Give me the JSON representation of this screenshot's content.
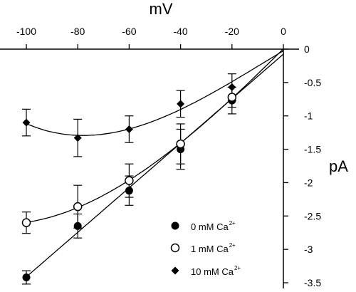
{
  "chart_data": {
    "type": "scatter",
    "xlabel": "mV",
    "ylabel": "pA",
    "xlim": [
      -105,
      0
    ],
    "ylim": [
      -3.55,
      0
    ],
    "x_ticks": [
      -100,
      -80,
      -60,
      -40,
      -20,
      0
    ],
    "y_ticks": [
      0,
      -0.5,
      -1,
      -1.5,
      -2,
      -2.5,
      -3,
      -3.5
    ],
    "x_tick_labels": [
      "-100",
      "-80",
      "-60",
      "-40",
      "-20",
      "0"
    ],
    "y_tick_labels": [
      "0",
      "-0.5",
      "-1",
      "-1.5",
      "-2",
      "-2.5",
      "-3",
      "-3.5"
    ],
    "legend_position": "bottom-right",
    "series": [
      {
        "name": "0 mM Ca",
        "name_sup": "2+",
        "marker": "filled-circle",
        "x": [
          -100,
          -80,
          -60,
          -40,
          -20
        ],
        "y": [
          -3.42,
          -2.65,
          -2.12,
          -1.5,
          -0.77
        ],
        "err": [
          0.1,
          0.18,
          0.22,
          0.3,
          0.2
        ],
        "fit": "linear"
      },
      {
        "name": "1 mM Ca",
        "name_sup": "2+",
        "marker": "open-circle",
        "x": [
          -100,
          -80,
          -60,
          -40,
          -20
        ],
        "y": [
          -2.6,
          -2.36,
          -1.97,
          -1.42,
          -0.72
        ],
        "err": [
          0.16,
          0.32,
          0.25,
          0.3,
          0.15
        ],
        "fit": "curve"
      },
      {
        "name": "10 mM Ca",
        "name_sup": "2+",
        "marker": "filled-diamond",
        "x": [
          -100,
          -80,
          -60,
          -40,
          -20
        ],
        "y": [
          -1.1,
          -1.33,
          -1.2,
          -0.82,
          -0.57
        ],
        "err": [
          0.2,
          0.28,
          0.2,
          0.2,
          0.2
        ],
        "fit": "curve"
      }
    ]
  }
}
